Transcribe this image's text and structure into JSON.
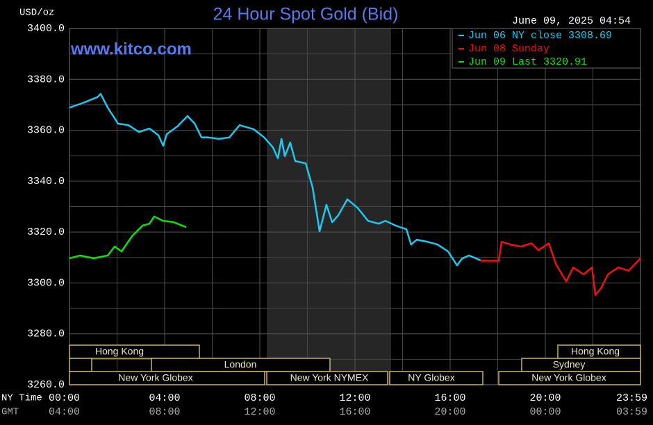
{
  "chart_data": {
    "type": "line",
    "title": "24 Hour Spot Gold (Bid)",
    "subtitle": "www.kitco.com",
    "date": "June 09, 2025 04:54",
    "y_axis_label": "USD/oz",
    "x_axis_label": "NY Time",
    "x2_axis_label": "GMT",
    "xlim": [
      0,
      24
    ],
    "xticks": [
      {
        "value": 0,
        "label": "00:00"
      },
      {
        "value": 4,
        "label": "04:00"
      },
      {
        "value": 8,
        "label": "08:00"
      },
      {
        "value": 12,
        "label": "12:00"
      },
      {
        "value": 16,
        "label": "16:00"
      },
      {
        "value": 20,
        "label": "20:00"
      },
      {
        "value": 24,
        "label": "23:59"
      }
    ],
    "x2_tick_labels": [
      "04:00",
      "08:00",
      "12:00",
      "16:00",
      "20:00",
      "00:00",
      "03:59"
    ],
    "x_minor_ticks": [
      2,
      6,
      10,
      14,
      18,
      22
    ],
    "ylim": [
      3260,
      3400
    ],
    "yticks": [
      {
        "value": 3260,
        "label": "3260.0"
      },
      {
        "value": 3280,
        "label": "3280.0"
      },
      {
        "value": 3300,
        "label": "3300.0"
      },
      {
        "value": 3320,
        "label": "3320.0"
      },
      {
        "value": 3340,
        "label": "3340.0"
      },
      {
        "value": 3360,
        "label": "3360.0"
      },
      {
        "value": 3380,
        "label": "3380.0"
      },
      {
        "value": 3400,
        "label": "3400.0"
      }
    ],
    "y_minor_ticks": [
      3270,
      3290,
      3310,
      3330,
      3350,
      3370,
      3390
    ],
    "grid": true,
    "legend": "top-right",
    "series": [
      {
        "name": "Jun 06 NY close 3308.69",
        "color": "#1ec8f0",
        "x": [
          0,
          0.58,
          1.17,
          1.31,
          1.61,
          2.04,
          2.48,
          2.92,
          3.36,
          3.74,
          3.94,
          4.09,
          4.53,
          4.96,
          5.26,
          5.55,
          5.84,
          6.28,
          6.72,
          7.15,
          7.74,
          8.18,
          8.55,
          8.76,
          8.91,
          9.05,
          9.28,
          9.49,
          9.93,
          10.22,
          10.51,
          10.8,
          11.04,
          11.3,
          11.68,
          12.12,
          12.55,
          12.99,
          13.28,
          13.72,
          14.16,
          14.36,
          14.6,
          15.04,
          15.47,
          15.91,
          16.29,
          16.5,
          16.79,
          17.28
        ],
        "values": [
          3368.9,
          3370.8,
          3373,
          3374.3,
          3368.9,
          3362.6,
          3362,
          3359.3,
          3360.7,
          3358,
          3353.9,
          3358.5,
          3361.5,
          3365.6,
          3362.6,
          3357.2,
          3357.2,
          3356.6,
          3357.2,
          3362,
          3360.4,
          3357.2,
          3353.3,
          3349,
          3356.6,
          3349.8,
          3355.2,
          3347.9,
          3347,
          3337.5,
          3320.3,
          3330.7,
          3323.9,
          3326.6,
          3332.9,
          3329.4,
          3324.4,
          3323.3,
          3324.4,
          3322.5,
          3321.1,
          3315.1,
          3317,
          3316.2,
          3315.1,
          3312.4,
          3306.9,
          3309.6,
          3310.8,
          3308.9
        ]
      },
      {
        "name": "Jun 08 Sunday",
        "color": "#f01010",
        "x": [
          17.28,
          18.04,
          18.16,
          18.54,
          18.98,
          19.42,
          19.71,
          20.15,
          20.44,
          20.88,
          21.17,
          21.61,
          21.96,
          22.1,
          22.34,
          22.63,
          23.07,
          23.5,
          24
        ],
        "values": [
          3308.7,
          3308.7,
          3316.2,
          3315.1,
          3314.3,
          3315.6,
          3312.9,
          3315.6,
          3307.5,
          3300.6,
          3306.1,
          3303.4,
          3306.1,
          3295.2,
          3297.9,
          3303.4,
          3306.1,
          3304.8,
          3309.7
        ]
      },
      {
        "name": "Jun 09 Last 3320.91",
        "color": "#10e010",
        "x": [
          0,
          0.44,
          1.02,
          1.61,
          1.9,
          2.19,
          2.63,
          3.07,
          3.36,
          3.56,
          3.94,
          4.38,
          4.91
        ],
        "values": [
          3309.7,
          3310.8,
          3309.7,
          3310.8,
          3314.3,
          3312.4,
          3318.4,
          3322.5,
          3323.3,
          3326.1,
          3324.4,
          3323.9,
          3321.9
        ]
      }
    ]
  },
  "market_sessions": [
    "Hong Kong",
    "London",
    "New York Globex",
    "New York NYMEX",
    "NY Globex",
    "Hong Kong",
    "Sydney",
    "New York Globex"
  ]
}
